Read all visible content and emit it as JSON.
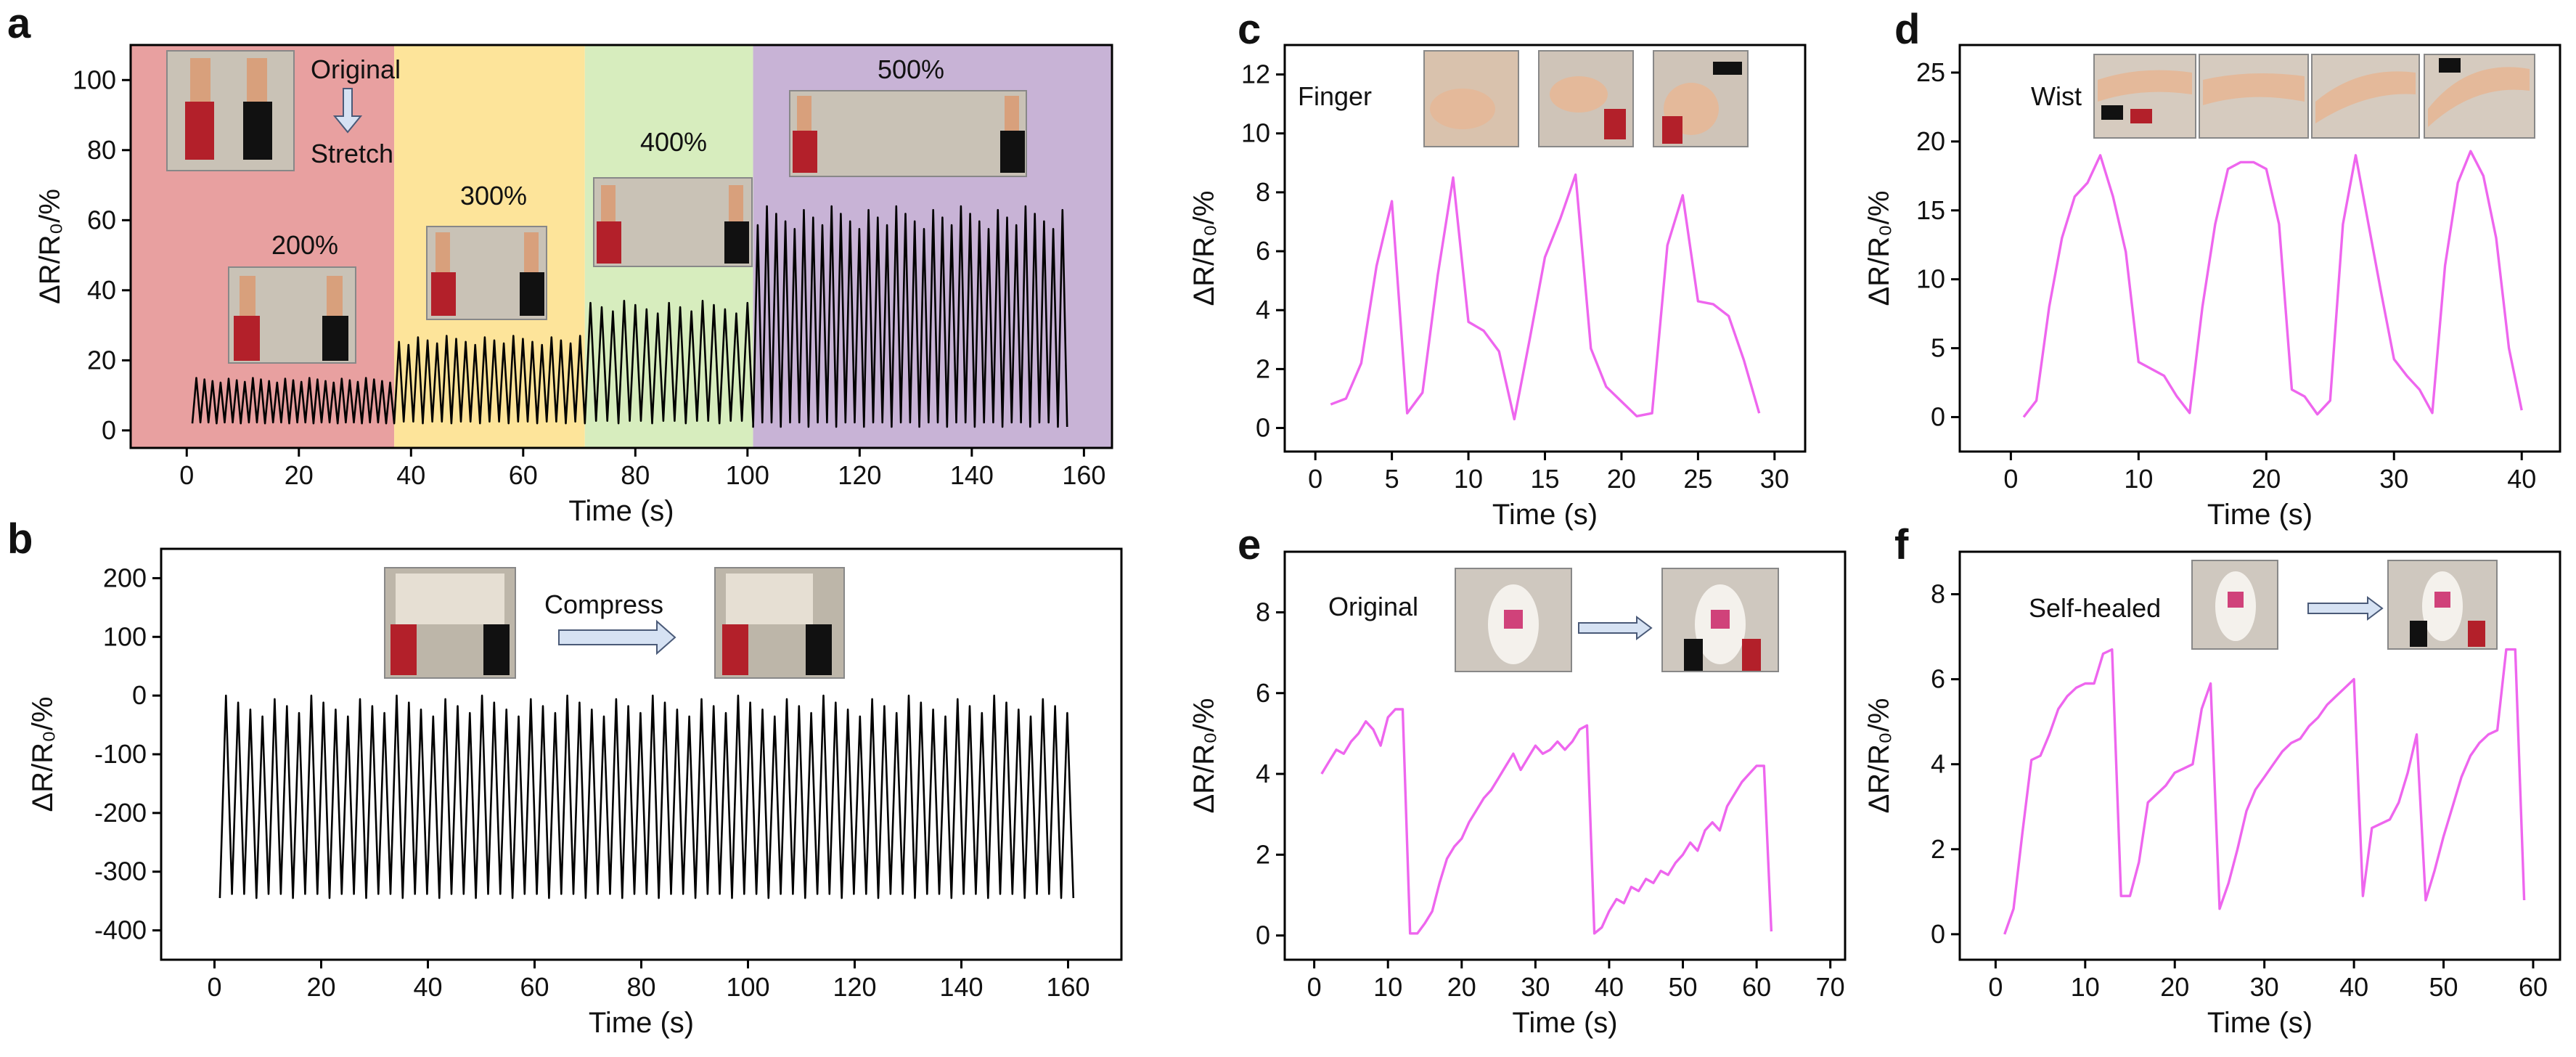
{
  "chart_data": [
    {
      "panel": "a",
      "type": "line",
      "xlabel": "Time (s)",
      "ylabel": "ΔR/R₀/%",
      "xlim": [
        -10,
        165
      ],
      "ylim": [
        -5,
        110
      ],
      "xticks": [
        0,
        20,
        40,
        60,
        80,
        100,
        120,
        140,
        160
      ],
      "yticks": [
        0,
        20,
        40,
        60,
        80,
        100
      ],
      "color": "#000000",
      "regions": [
        {
          "label": "200%",
          "x_range": [
            -10,
            37
          ],
          "color": "#e8a0a0"
        },
        {
          "label": "300%",
          "x_range": [
            37,
            71
          ],
          "color": "#fde49a"
        },
        {
          "label": "400%",
          "x_range": [
            71,
            101
          ],
          "color": "#d7edbe"
        },
        {
          "label": "500%",
          "x_range": [
            101,
            165
          ],
          "color": "#c8b3d6"
        }
      ],
      "annotations": [
        "Original",
        "Stretch"
      ],
      "segments": [
        {
          "x_range": [
            1,
            37
          ],
          "cycles": 25,
          "min": 2,
          "max": 15
        },
        {
          "x_range": [
            37,
            71
          ],
          "cycles": 20,
          "min": 2,
          "max": 27
        },
        {
          "x_range": [
            71,
            101
          ],
          "cycles": 15,
          "min": 2,
          "max": 37
        },
        {
          "x_range": [
            101,
            157
          ],
          "cycles": 34,
          "min": 1,
          "max": 64
        }
      ]
    },
    {
      "panel": "b",
      "type": "line",
      "xlabel": "Time (s)",
      "ylabel": "ΔR/R₀/%",
      "xlim": [
        -10,
        170
      ],
      "ylim": [
        -450,
        250
      ],
      "xticks": [
        0,
        20,
        40,
        60,
        80,
        100,
        120,
        140,
        160
      ],
      "yticks": [
        -400,
        -300,
        -200,
        -100,
        0,
        100,
        200
      ],
      "color": "#000000",
      "annotations": [
        "Compress"
      ],
      "segments": [
        {
          "x_range": [
            1,
            161
          ],
          "cycles": 70,
          "min": -345,
          "max": 0
        }
      ]
    },
    {
      "panel": "c",
      "type": "line",
      "xlabel": "Time (s)",
      "ylabel": "ΔR/R₀/%",
      "xlim": [
        -2,
        32
      ],
      "ylim": [
        -0.8,
        13
      ],
      "xticks": [
        0,
        5,
        10,
        15,
        20,
        25,
        30
      ],
      "yticks": [
        0,
        2,
        4,
        6,
        8,
        10,
        12
      ],
      "color": "#ee66ee",
      "annotations": [
        "Finger"
      ],
      "x": [
        1,
        2,
        3,
        4,
        5,
        6,
        7,
        8,
        9,
        10,
        11,
        12,
        13,
        14,
        15,
        16,
        17,
        18,
        19,
        20,
        21,
        22,
        23,
        24,
        25,
        26,
        27,
        28,
        29
      ],
      "y": [
        0.8,
        1.0,
        2.2,
        5.5,
        7.7,
        0.5,
        1.2,
        5.2,
        8.5,
        3.6,
        3.3,
        2.6,
        0.3,
        3.0,
        5.8,
        7.1,
        8.6,
        2.7,
        1.4,
        0.9,
        0.4,
        0.5,
        6.2,
        7.9,
        4.3,
        4.2,
        3.8,
        2.3,
        0.5
      ]
    },
    {
      "panel": "d",
      "type": "line",
      "xlabel": "Time (s)",
      "ylabel": "ΔR/R₀/%",
      "xlim": [
        -4,
        43
      ],
      "ylim": [
        -2.5,
        27
      ],
      "xticks": [
        0,
        10,
        20,
        30,
        40
      ],
      "yticks": [
        0,
        5,
        10,
        15,
        20,
        25
      ],
      "color": "#ee66ee",
      "annotations": [
        "Wist"
      ],
      "x": [
        1,
        2,
        3,
        4,
        5,
        6,
        7,
        8,
        9,
        10,
        11,
        12,
        13,
        14,
        15,
        16,
        17,
        18,
        19,
        20,
        21,
        22,
        23,
        24,
        25,
        26,
        27,
        28,
        29,
        30,
        31,
        32,
        33,
        34,
        35,
        36,
        37,
        38,
        39,
        40
      ],
      "y": [
        0,
        1.2,
        8,
        13,
        16,
        17,
        19,
        16,
        12,
        4,
        3.5,
        3,
        1.5,
        0.3,
        8,
        14,
        18,
        18.5,
        18.5,
        18,
        14,
        2,
        1.5,
        0.2,
        1.2,
        14,
        19,
        14,
        9,
        4.2,
        3,
        2,
        0.3,
        11,
        17,
        19.3,
        17.5,
        13,
        5,
        0.5
      ]
    },
    {
      "panel": "e",
      "type": "line",
      "xlabel": "Time (s)",
      "ylabel": "ΔR/R₀/%",
      "xlim": [
        -4,
        72
      ],
      "ylim": [
        -0.6,
        9.5
      ],
      "xticks": [
        0,
        10,
        20,
        30,
        40,
        50,
        60,
        70
      ],
      "yticks": [
        0,
        2,
        4,
        6,
        8
      ],
      "color": "#ee66ee",
      "annotations": [
        "Original"
      ],
      "x": [
        1,
        2,
        3,
        4,
        5,
        6,
        7,
        8,
        9,
        10,
        11,
        12,
        13,
        14,
        15,
        16,
        17,
        18,
        19,
        20,
        21,
        22,
        23,
        24,
        25,
        26,
        27,
        28,
        29,
        30,
        31,
        32,
        33,
        34,
        35,
        36,
        37,
        38,
        39,
        40,
        41,
        42,
        43,
        44,
        45,
        46,
        47,
        48,
        49,
        50,
        51,
        52,
        53,
        54,
        55,
        56,
        57,
        58,
        59,
        60,
        61,
        62
      ],
      "y": [
        4.0,
        4.3,
        4.6,
        4.5,
        4.8,
        5.0,
        5.3,
        5.1,
        4.7,
        5.4,
        5.6,
        5.6,
        0.05,
        0.05,
        0.3,
        0.6,
        1.3,
        1.9,
        2.2,
        2.4,
        2.8,
        3.1,
        3.4,
        3.6,
        3.9,
        4.2,
        4.5,
        4.1,
        4.4,
        4.7,
        4.5,
        4.6,
        4.8,
        4.6,
        4.8,
        5.1,
        5.2,
        0.05,
        0.2,
        0.6,
        0.9,
        0.8,
        1.2,
        1.1,
        1.4,
        1.3,
        1.6,
        1.5,
        1.8,
        2.0,
        2.3,
        2.1,
        2.6,
        2.8,
        2.6,
        3.2,
        3.5,
        3.8,
        4.0,
        4.2,
        4.2,
        0.1
      ]
    },
    {
      "panel": "f",
      "type": "line",
      "xlabel": "Time (s)",
      "ylabel": "ΔR/R₀/%",
      "xlim": [
        -4,
        63
      ],
      "ylim": [
        -0.6,
        9
      ],
      "xticks": [
        0,
        10,
        20,
        30,
        40,
        50,
        60
      ],
      "yticks": [
        0,
        2,
        4,
        6,
        8
      ],
      "color": "#ee66ee",
      "annotations": [
        "Self-healed"
      ],
      "x": [
        1,
        2,
        3,
        4,
        5,
        6,
        7,
        8,
        9,
        10,
        11,
        12,
        13,
        14,
        15,
        16,
        17,
        18,
        19,
        20,
        21,
        22,
        23,
        24,
        25,
        26,
        27,
        28,
        29,
        30,
        31,
        32,
        33,
        34,
        35,
        36,
        37,
        38,
        39,
        40,
        41,
        42,
        43,
        44,
        45,
        46,
        47,
        48,
        49,
        50,
        51,
        52,
        53,
        54,
        55,
        56,
        57,
        58,
        59
      ],
      "y": [
        0,
        0.6,
        2.4,
        4.1,
        4.2,
        4.7,
        5.3,
        5.6,
        5.8,
        5.9,
        5.9,
        6.6,
        6.7,
        0.9,
        0.9,
        1.7,
        3.1,
        3.3,
        3.5,
        3.8,
        3.9,
        4.0,
        5.3,
        5.9,
        0.6,
        1.2,
        2.0,
        2.9,
        3.4,
        3.7,
        4.0,
        4.3,
        4.5,
        4.6,
        4.9,
        5.1,
        5.4,
        5.6,
        5.8,
        6.0,
        0.9,
        2.5,
        2.6,
        2.7,
        3.1,
        3.8,
        4.7,
        0.8,
        1.5,
        2.3,
        3.0,
        3.7,
        4.2,
        4.5,
        4.7,
        4.8,
        6.7,
        6.7,
        0.8
      ]
    }
  ]
}
